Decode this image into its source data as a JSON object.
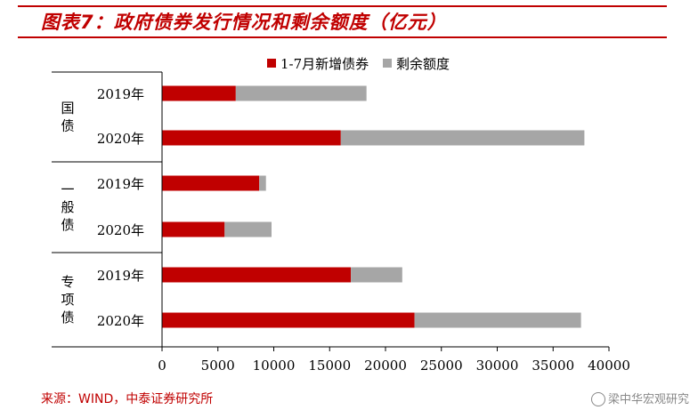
{
  "title": "图表7：政府债券发行情况和剩余额度（亿元）",
  "source": "来源：WIND，中泰证券研究所",
  "watermark": "梁中华宏观研究",
  "colors": {
    "issued": "#c00000",
    "remaining": "#a6a6a6",
    "accent": "#c00000"
  },
  "chart_data": {
    "type": "bar",
    "orientation": "horizontal",
    "stacked": true,
    "groups": [
      {
        "name": "国债",
        "categories": [
          "2019年",
          "2020年"
        ]
      },
      {
        "name": "一般债",
        "categories": [
          "2019年",
          "2020年"
        ]
      },
      {
        "name": "专项债",
        "categories": [
          "2019年",
          "2020年"
        ]
      }
    ],
    "series": [
      {
        "name": "1-7月新增债券",
        "values": [
          6600,
          16000,
          8700,
          5600,
          16900,
          22600
        ]
      },
      {
        "name": "剩余额度",
        "values": [
          11700,
          21800,
          600,
          4200,
          4600,
          14900
        ]
      }
    ],
    "xlim": [
      0,
      40000
    ],
    "xticks": [
      0,
      5000,
      10000,
      15000,
      20000,
      25000,
      30000,
      35000,
      40000
    ],
    "legend_position": "top-right"
  }
}
